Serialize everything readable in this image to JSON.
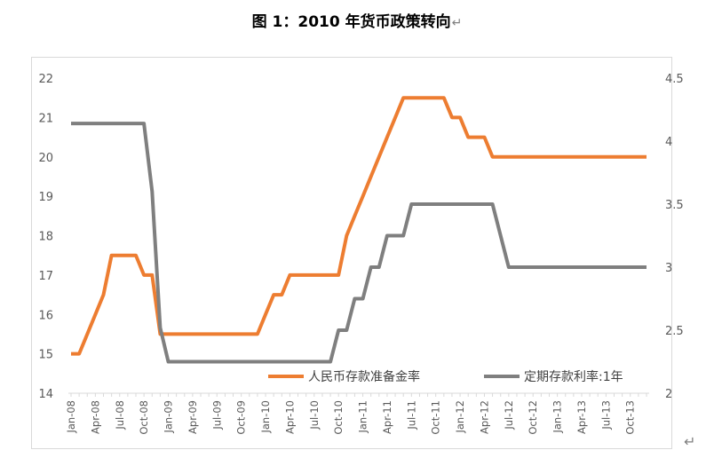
{
  "title": "图 1：2010 年货币政策转向",
  "paragraph_mark": "↵",
  "chart_data": {
    "type": "line",
    "title": "图 1：2010 年货币政策转向",
    "x": [
      "Jan-08",
      "Feb-08",
      "Mar-08",
      "Apr-08",
      "May-08",
      "Jun-08",
      "Jul-08",
      "Aug-08",
      "Sep-08",
      "Oct-08",
      "Nov-08",
      "Dec-08",
      "Jan-09",
      "Feb-09",
      "Mar-09",
      "Apr-09",
      "May-09",
      "Jun-09",
      "Jul-09",
      "Aug-09",
      "Sep-09",
      "Oct-09",
      "Nov-09",
      "Dec-09",
      "Jan-10",
      "Feb-10",
      "Mar-10",
      "Apr-10",
      "May-10",
      "Jun-10",
      "Jul-10",
      "Aug-10",
      "Sep-10",
      "Oct-10",
      "Nov-10",
      "Dec-10",
      "Jan-11",
      "Feb-11",
      "Mar-11",
      "Apr-11",
      "May-11",
      "Jun-11",
      "Jul-11",
      "Aug-11",
      "Sep-11",
      "Oct-11",
      "Nov-11",
      "Dec-11",
      "Jan-12",
      "Feb-12",
      "Mar-12",
      "Apr-12",
      "May-12",
      "Jun-12",
      "Jul-12",
      "Aug-12",
      "Sep-12",
      "Oct-12",
      "Nov-12",
      "Dec-12",
      "Jan-13",
      "Feb-13",
      "Mar-13",
      "Apr-13",
      "May-13",
      "Jun-13",
      "Jul-13",
      "Aug-13",
      "Sep-13",
      "Oct-13",
      "Nov-13",
      "Dec-13"
    ],
    "x_tick_labels": [
      "Jan-08",
      "Apr-08",
      "Jul-08",
      "Oct-08",
      "Jan-09",
      "Apr-09",
      "Jul-09",
      "Oct-09",
      "Jan-10",
      "Apr-10",
      "Jul-10",
      "Oct-10",
      "Jan-11",
      "Apr-11",
      "Jul-11",
      "Oct-11",
      "Jan-12",
      "Apr-12",
      "Jul-12",
      "Oct-12",
      "Jan-13",
      "Apr-13",
      "Jul-13",
      "Oct-13"
    ],
    "series": [
      {
        "name": "人民币存款准备金率",
        "axis": "left",
        "color": "#ED7D31",
        "values": [
          15,
          15,
          15.5,
          16,
          16.5,
          17.5,
          17.5,
          17.5,
          17.5,
          17,
          17,
          15.5,
          15.5,
          15.5,
          15.5,
          15.5,
          15.5,
          15.5,
          15.5,
          15.5,
          15.5,
          15.5,
          15.5,
          15.5,
          16,
          16.5,
          16.5,
          17,
          17,
          17,
          17,
          17,
          17,
          17,
          18,
          18.5,
          19,
          19.5,
          20,
          20.5,
          21,
          21.5,
          21.5,
          21.5,
          21.5,
          21.5,
          21.5,
          21,
          21,
          20.5,
          20.5,
          20.5,
          20,
          20,
          20,
          20,
          20,
          20,
          20,
          20,
          20,
          20,
          20,
          20,
          20,
          20,
          20,
          20,
          20,
          20,
          20,
          20
        ]
      },
      {
        "name": "定期存款利率:1年",
        "axis": "right",
        "color": "#7F7F7F",
        "values": [
          4.14,
          4.14,
          4.14,
          4.14,
          4.14,
          4.14,
          4.14,
          4.14,
          4.14,
          4.14,
          3.6,
          2.52,
          2.25,
          2.25,
          2.25,
          2.25,
          2.25,
          2.25,
          2.25,
          2.25,
          2.25,
          2.25,
          2.25,
          2.25,
          2.25,
          2.25,
          2.25,
          2.25,
          2.25,
          2.25,
          2.25,
          2.25,
          2.25,
          2.5,
          2.5,
          2.75,
          2.75,
          3,
          3,
          3.25,
          3.25,
          3.25,
          3.5,
          3.5,
          3.5,
          3.5,
          3.5,
          3.5,
          3.5,
          3.5,
          3.5,
          3.5,
          3.5,
          3.25,
          3,
          3,
          3,
          3,
          3,
          3,
          3,
          3,
          3,
          3,
          3,
          3,
          3,
          3,
          3,
          3,
          3,
          3
        ]
      }
    ],
    "y_left": {
      "ylim": [
        14,
        22
      ],
      "ticks": [
        "14",
        "15",
        "16",
        "17",
        "18",
        "19",
        "20",
        "21",
        "22"
      ]
    },
    "y_right": {
      "ylim": [
        2,
        4.5
      ],
      "ticks": [
        "2",
        "2.5",
        "3",
        "3.5",
        "4",
        "4.5"
      ]
    },
    "grid": false,
    "legend_position": "bottom-right inside plot"
  }
}
